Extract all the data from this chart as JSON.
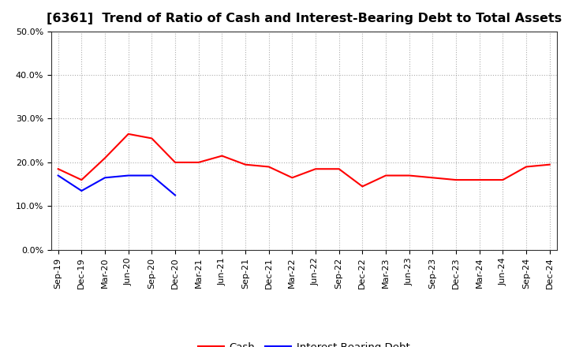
{
  "title": "[6361]  Trend of Ratio of Cash and Interest-Bearing Debt to Total Assets",
  "x_labels": [
    "Sep-19",
    "Dec-19",
    "Mar-20",
    "Jun-20",
    "Sep-20",
    "Dec-20",
    "Mar-21",
    "Jun-21",
    "Sep-21",
    "Dec-21",
    "Mar-22",
    "Jun-22",
    "Sep-22",
    "Dec-22",
    "Mar-23",
    "Jun-23",
    "Sep-23",
    "Dec-23",
    "Mar-24",
    "Jun-24",
    "Sep-24",
    "Dec-24"
  ],
  "cash": [
    0.185,
    0.16,
    0.21,
    0.265,
    0.255,
    0.2,
    0.2,
    0.215,
    0.195,
    0.19,
    0.165,
    0.185,
    0.185,
    0.145,
    0.17,
    0.17,
    0.165,
    0.16,
    0.16,
    0.16,
    0.19,
    0.195
  ],
  "debt": [
    0.17,
    0.135,
    0.165,
    0.17,
    0.17,
    0.125,
    null,
    null,
    null,
    null,
    null,
    null,
    null,
    null,
    null,
    null,
    null,
    null,
    null,
    null,
    null,
    null
  ],
  "cash_color": "#FF0000",
  "debt_color": "#0000FF",
  "ylim": [
    0.0,
    0.5
  ],
  "yticks": [
    0.0,
    0.1,
    0.2,
    0.3,
    0.4,
    0.5
  ],
  "background_color": "#FFFFFF",
  "plot_bg_color": "#FFFFFF",
  "grid_color": "#999999",
  "title_fontsize": 11.5,
  "tick_fontsize": 8,
  "legend_labels": [
    "Cash",
    "Interest-Bearing Debt"
  ]
}
